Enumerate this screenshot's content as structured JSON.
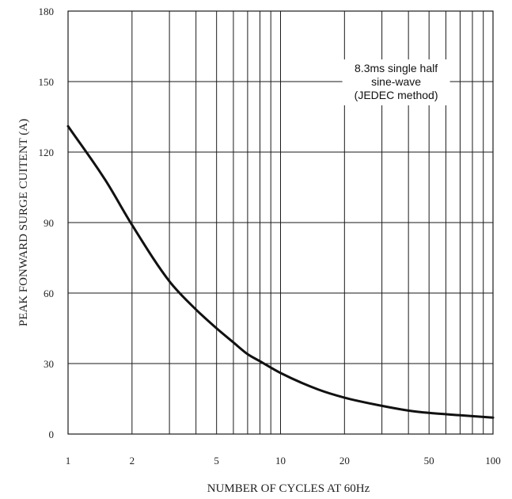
{
  "chart_data": {
    "type": "line",
    "xscale": "log",
    "xlabel": "NUMBER OF CYCLES AT 60Hz",
    "ylabel": "PEAK FONWARD SURGE CUITENT (A)",
    "xlim": [
      1,
      100
    ],
    "ylim": [
      0,
      180
    ],
    "grid": true,
    "x_ticks": [
      1,
      2,
      5,
      10,
      20,
      50,
      100
    ],
    "x_tick_labels": [
      "1",
      "2",
      "5",
      "10",
      "20",
      "50",
      "100"
    ],
    "y_ticks": [
      0,
      30,
      60,
      90,
      120,
      150,
      180
    ],
    "y_tick_labels": [
      "0",
      "30",
      "60",
      "90",
      "120",
      "150",
      "180"
    ],
    "x_gridlines": [
      1,
      2,
      3,
      4,
      5,
      6,
      7,
      8,
      9,
      10,
      20,
      30,
      40,
      50,
      60,
      70,
      80,
      90,
      100
    ],
    "series": [
      {
        "x": [
          1,
          1.5,
          2,
          3,
          4,
          5,
          6,
          7,
          8,
          10,
          15,
          20,
          30,
          40,
          50,
          70,
          100
        ],
        "y": [
          131,
          108,
          89,
          65,
          53,
          45,
          39,
          34,
          31,
          26,
          19,
          15.5,
          12,
          10,
          9,
          8,
          7
        ]
      }
    ],
    "annotation": {
      "lines": [
        "8.3ms single half",
        "sine-wave",
        "(JEDEC method)"
      ],
      "x": 35,
      "y": 150
    }
  },
  "colors": {
    "curve": "#111111",
    "grid": "#1a1a1a",
    "background": "#ffffff"
  }
}
